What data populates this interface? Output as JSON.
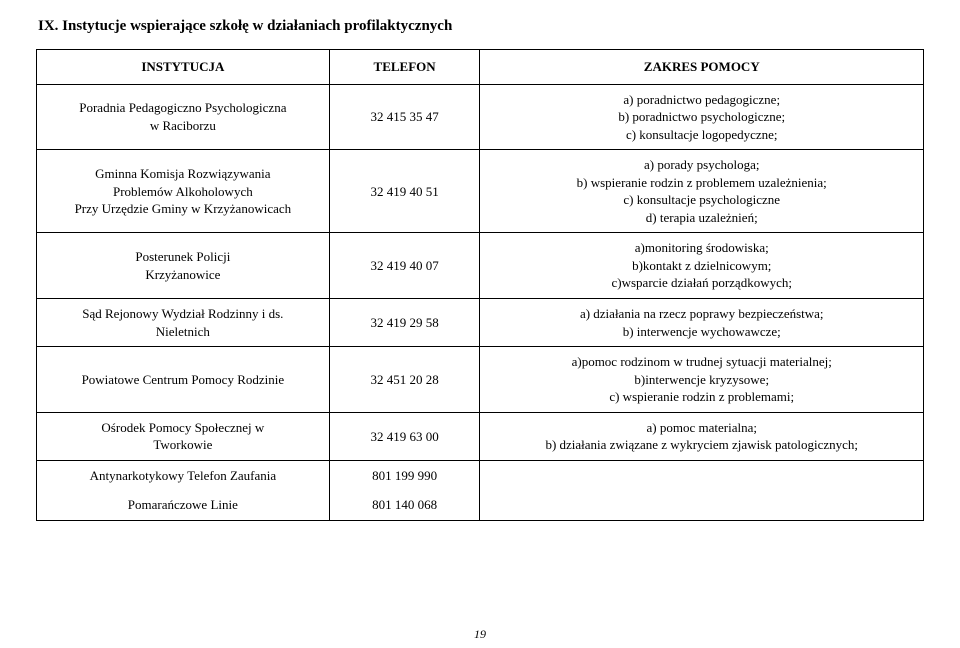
{
  "title": "IX. Instytucje wspierające szkołę w  działaniach  profilaktycznych",
  "pageNumber": "19",
  "columns": {
    "c1": "INSTYTUCJA",
    "c2": "TELEFON",
    "c3": "ZAKRES POMOCY"
  },
  "rows": [
    {
      "inst": [
        "Poradnia Pedagogiczno Psychologiczna",
        "w  Raciborzu"
      ],
      "tel": "32 415 35 47",
      "zak": [
        "a) poradnictwo pedagogiczne;",
        "b) poradnictwo psychologiczne;",
        "c) konsultacje logopedyczne;"
      ]
    },
    {
      "inst": [
        "Gminna Komisja Rozwiązywania",
        "Problemów Alkoholowych",
        "Przy Urzędzie Gminy w Krzyżanowicach"
      ],
      "tel": "32 419 40 51",
      "zak": [
        "a) porady psychologa;",
        "b) wspieranie rodzin z problemem uzależnienia;",
        "c) konsultacje psychologiczne",
        "d) terapia uzależnień;"
      ]
    },
    {
      "inst": [
        "Posterunek Policji",
        "Krzyżanowice"
      ],
      "tel": "32 419 40 07",
      "zak": [
        "a)monitoring środowiska;",
        "b)kontakt z dzielnicowym;",
        "c)wsparcie działań porządkowych;"
      ]
    },
    {
      "inst": [
        "Sąd Rejonowy  Wydział Rodzinny i ds.",
        "Nieletnich"
      ],
      "tel": "32 419 29 58",
      "zak": [
        "a) działania na rzecz poprawy bezpieczeństwa;",
        "b) interwencje wychowawcze;"
      ]
    },
    {
      "inst": [
        "Powiatowe Centrum Pomocy Rodzinie"
      ],
      "tel": "32 451 20 28",
      "zak": [
        "a)pomoc rodzinom w trudnej sytuacji materialnej;",
        "b)interwencje kryzysowe;",
        "c) wspieranie rodzin z problemami;"
      ]
    },
    {
      "inst": [
        "Ośrodek Pomocy Społecznej w",
        "Tworkowie"
      ],
      "tel": "32 419 63 00",
      "zak": [
        "a) pomoc materialna;",
        "b) działania związane z wykryciem zjawisk patologicznych;"
      ]
    },
    {
      "inst": [
        "Antynarkotykowy Telefon Zaufania"
      ],
      "tel": "801 199 990",
      "zak": []
    },
    {
      "inst": [
        "Pomarańczowe Linie"
      ],
      "tel": "801 140 068",
      "zak": []
    }
  ]
}
